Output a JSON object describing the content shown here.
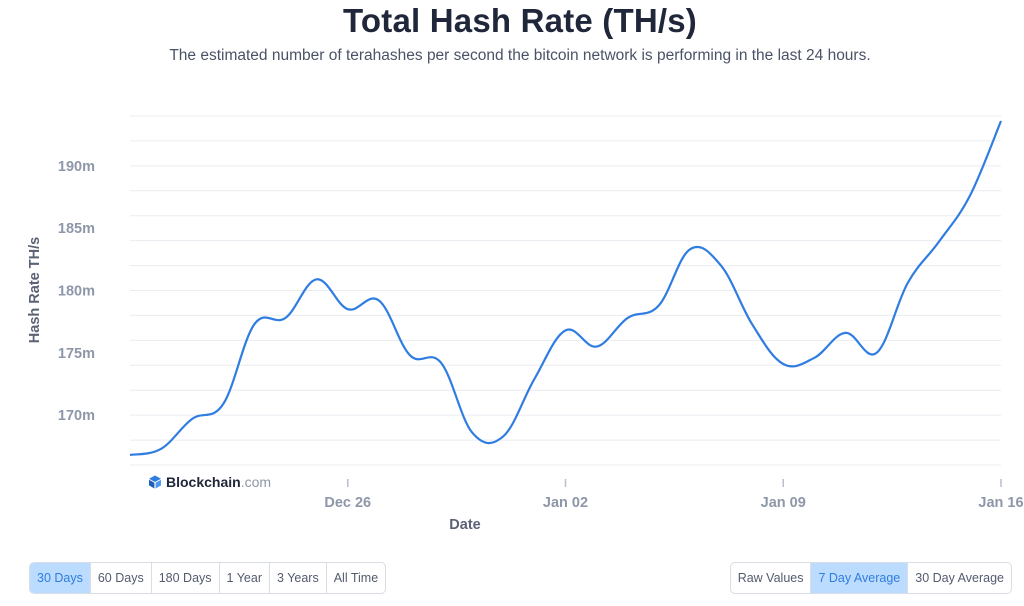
{
  "title": "Total Hash Rate (TH/s)",
  "subtitle": "The estimated number of terahashes per second the bitcoin network is performing in the last 24 hours.",
  "watermark": {
    "brand": "Blockchain",
    "domain": ".com"
  },
  "range_buttons": [
    "30 Days",
    "60 Days",
    "180 Days",
    "1 Year",
    "3 Years",
    "All Time"
  ],
  "range_selected": "30 Days",
  "mode_buttons": [
    "Raw Values",
    "7 Day Average",
    "30 Day Average"
  ],
  "mode_selected": "7 Day Average",
  "colors": {
    "line": "#2f7de1",
    "active_button_bg": "#bcdcff",
    "active_button_text": "#2f7de1",
    "grid": "#e9ecf1"
  },
  "chart_data": {
    "type": "line",
    "title": "Total Hash Rate (TH/s)",
    "xlabel": "Date",
    "ylabel": "Hash Rate TH/s",
    "x_tick_labels": [
      "Dec 26",
      "Jan 02",
      "Jan 09",
      "Jan 16"
    ],
    "y_tick_labels": [
      "170m",
      "175m",
      "180m",
      "185m",
      "190m"
    ],
    "y_ticks": [
      170,
      175,
      180,
      185,
      190
    ],
    "ylim": [
      166,
      194
    ],
    "x_domain": [
      "2021-12-19",
      "2022-01-16"
    ],
    "grid": true,
    "series": [
      {
        "values": [
          [
            "2021-12-19",
            166.8
          ],
          [
            "2021-12-20",
            167.3
          ],
          [
            "2021-12-21",
            169.7
          ],
          [
            "2021-12-22",
            170.9
          ],
          [
            "2021-12-23",
            177.3
          ],
          [
            "2021-12-24",
            177.8
          ],
          [
            "2021-12-25",
            180.9
          ],
          [
            "2021-12-26",
            178.5
          ],
          [
            "2021-12-27",
            179.2
          ],
          [
            "2021-12-28",
            174.8
          ],
          [
            "2021-12-29",
            174.2
          ],
          [
            "2021-12-30",
            168.6
          ],
          [
            "2021-12-31",
            168.3
          ],
          [
            "2022-01-01",
            172.9
          ],
          [
            "2022-01-02",
            176.8
          ],
          [
            "2022-01-03",
            175.5
          ],
          [
            "2022-01-04",
            177.8
          ],
          [
            "2022-01-05",
            178.8
          ],
          [
            "2022-01-06",
            183.3
          ],
          [
            "2022-01-07",
            182.0
          ],
          [
            "2022-01-08",
            177.3
          ],
          [
            "2022-01-09",
            174.1
          ],
          [
            "2022-01-10",
            174.6
          ],
          [
            "2022-01-11",
            176.6
          ],
          [
            "2022-01-12",
            175.0
          ],
          [
            "2022-01-13",
            180.6
          ],
          [
            "2022-01-14",
            183.9
          ],
          [
            "2022-01-15",
            187.6
          ],
          [
            "2022-01-16",
            193.6
          ]
        ]
      }
    ]
  }
}
